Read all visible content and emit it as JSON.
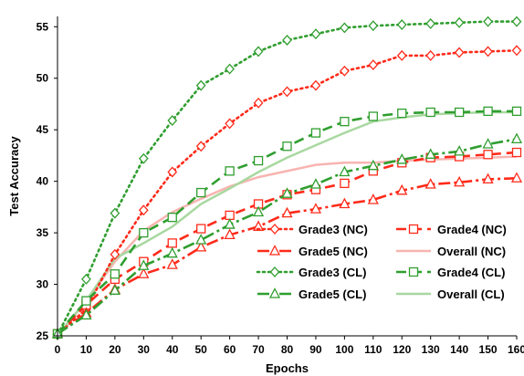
{
  "chart_data": {
    "type": "line",
    "title": "",
    "xlabel": "Epochs",
    "ylabel": "Test Accuracy",
    "xlim": [
      0,
      160
    ],
    "ylim": [
      25,
      56
    ],
    "x_ticks": [
      0,
      10,
      20,
      30,
      40,
      50,
      60,
      70,
      80,
      90,
      100,
      110,
      120,
      130,
      140,
      150,
      160
    ],
    "y_ticks": [
      25,
      30,
      35,
      40,
      45,
      50,
      55
    ],
    "grid": false,
    "legend": "bottom-right",
    "series": [
      {
        "name": "Grade3 (NC)",
        "color": "#ff2a1a",
        "style": "dotted",
        "marker": "diamond",
        "x": [
          0,
          10,
          20,
          30,
          40,
          50,
          60,
          70,
          80,
          90,
          100,
          110,
          120,
          130,
          140,
          150,
          160
        ],
        "y": [
          25.1,
          27.6,
          32.9,
          37.2,
          40.9,
          43.4,
          45.6,
          47.6,
          48.7,
          49.3,
          50.7,
          51.3,
          52.2,
          52.2,
          52.5,
          52.6,
          52.7
        ]
      },
      {
        "name": "Grade4 (NC)",
        "color": "#ff2a1a",
        "style": "dashed",
        "marker": "square",
        "x": [
          0,
          10,
          20,
          30,
          40,
          50,
          60,
          70,
          80,
          90,
          100,
          110,
          120,
          130,
          140,
          150,
          160
        ],
        "y": [
          25.2,
          28.0,
          30.5,
          32.2,
          34.0,
          35.4,
          36.7,
          37.8,
          38.7,
          39.2,
          39.8,
          41.0,
          41.8,
          42.3,
          42.4,
          42.6,
          42.8
        ]
      },
      {
        "name": "Grade5 (NC)",
        "color": "#ff2a1a",
        "style": "dashdot",
        "marker": "triangle",
        "x": [
          0,
          10,
          20,
          30,
          40,
          50,
          60,
          70,
          80,
          90,
          100,
          110,
          120,
          130,
          140,
          150,
          160
        ],
        "y": [
          25.2,
          27.2,
          29.5,
          31.0,
          31.9,
          33.6,
          34.8,
          35.6,
          36.9,
          37.3,
          37.8,
          38.2,
          39.1,
          39.7,
          39.9,
          40.2,
          40.3
        ]
      },
      {
        "name": "Overall (NC)",
        "color": "#f8b4b0",
        "style": "solid",
        "marker": "none",
        "x": [
          0,
          10,
          20,
          30,
          40,
          50,
          60,
          70,
          80,
          90,
          100,
          110,
          120,
          130,
          140,
          150,
          160
        ],
        "y": [
          25.1,
          28.3,
          32.2,
          35.2,
          37.0,
          38.3,
          39.5,
          40.4,
          41.0,
          41.6,
          41.8,
          41.8,
          42.0,
          42.1,
          42.2,
          42.3,
          42.4
        ]
      },
      {
        "name": "Grade3 (CL)",
        "color": "#2f9e2f",
        "style": "dotted",
        "marker": "diamond",
        "x": [
          0,
          10,
          20,
          30,
          40,
          50,
          60,
          70,
          80,
          90,
          100,
          110,
          120,
          130,
          140,
          150,
          160
        ],
        "y": [
          25.1,
          30.5,
          36.9,
          42.2,
          45.9,
          49.3,
          50.9,
          52.6,
          53.7,
          54.3,
          54.9,
          55.1,
          55.2,
          55.3,
          55.4,
          55.5,
          55.5
        ]
      },
      {
        "name": "Grade4 (CL)",
        "color": "#2f9e2f",
        "style": "dashed",
        "marker": "square",
        "x": [
          0,
          10,
          20,
          30,
          40,
          50,
          60,
          70,
          80,
          90,
          100,
          110,
          120,
          130,
          140,
          150,
          160
        ],
        "y": [
          25.2,
          28.4,
          31.0,
          35.0,
          36.5,
          38.9,
          41.0,
          42.0,
          43.4,
          44.7,
          45.8,
          46.3,
          46.6,
          46.7,
          46.7,
          46.8,
          46.8
        ]
      },
      {
        "name": "Grade5 (CL)",
        "color": "#2f9e2f",
        "style": "dashdot",
        "marker": "triangle",
        "x": [
          0,
          10,
          20,
          30,
          40,
          50,
          60,
          70,
          80,
          90,
          100,
          110,
          120,
          130,
          140,
          150,
          160
        ],
        "y": [
          25.2,
          27.0,
          29.4,
          31.8,
          33.0,
          34.3,
          35.8,
          37.0,
          38.8,
          39.7,
          40.9,
          41.5,
          42.1,
          42.6,
          42.9,
          43.6,
          44.1
        ]
      },
      {
        "name": "Overall (CL)",
        "color": "#a8d8a0",
        "style": "solid",
        "marker": "none",
        "x": [
          0,
          10,
          20,
          30,
          40,
          50,
          60,
          70,
          80,
          90,
          100,
          110,
          120,
          130,
          140,
          150,
          160
        ],
        "y": [
          25.1,
          28.4,
          32.5,
          34.0,
          35.6,
          37.8,
          39.3,
          40.9,
          42.3,
          43.5,
          44.7,
          45.8,
          46.2,
          46.5,
          46.6,
          46.7,
          46.7
        ]
      }
    ]
  }
}
